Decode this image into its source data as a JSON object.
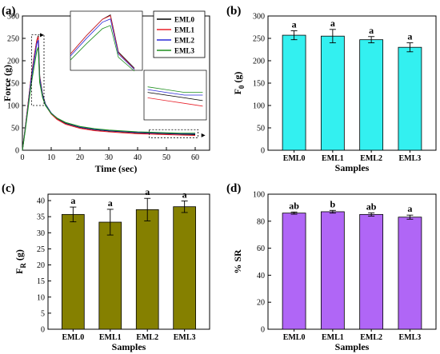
{
  "chart_data": [
    {
      "id": "a",
      "type": "line",
      "panel_label": "(a)",
      "xlabel": "Time (sec)",
      "ylabel": "Force (g)",
      "xlim": [
        0,
        65
      ],
      "ylim": [
        0,
        300
      ],
      "xticks": [
        0,
        10,
        20,
        30,
        40,
        50,
        60
      ],
      "yticks": [
        0,
        50,
        100,
        150,
        200,
        250,
        300
      ],
      "series": [
        {
          "name": "EML0",
          "color": "#000000",
          "x": [
            0,
            1,
            2,
            3,
            4,
            5,
            5.5,
            6,
            7,
            8,
            10,
            12,
            15,
            20,
            25,
            30,
            35,
            40,
            45,
            50,
            55,
            60
          ],
          "y": [
            0,
            50,
            105,
            160,
            205,
            245,
            256,
            165,
            125,
            103,
            83,
            71,
            60,
            51,
            46,
            43,
            41,
            39,
            38,
            37,
            36,
            35
          ]
        },
        {
          "name": "EML1",
          "color": "#e8202a",
          "x": [
            0,
            1,
            2,
            3,
            4,
            5,
            5.5,
            6,
            7,
            8,
            10,
            12,
            15,
            20,
            25,
            30,
            35,
            40,
            45,
            50,
            55,
            60
          ],
          "y": [
            0,
            50,
            105,
            160,
            205,
            245,
            254,
            163,
            123,
            101,
            81,
            69,
            58,
            49,
            44,
            41,
            39,
            37,
            36,
            35,
            34,
            33
          ]
        },
        {
          "name": "EML2",
          "color": "#2a2ad8",
          "x": [
            0,
            1,
            2,
            3,
            4,
            5,
            5.5,
            6,
            7,
            8,
            10,
            12,
            15,
            20,
            25,
            30,
            35,
            40,
            45,
            50,
            55,
            60
          ],
          "y": [
            0,
            48,
            100,
            155,
            198,
            238,
            246,
            160,
            122,
            102,
            83,
            72,
            61,
            52,
            47,
            44,
            42,
            40,
            39,
            38,
            37,
            37
          ]
        },
        {
          "name": "EML3",
          "color": "#1f8f1f",
          "x": [
            0,
            1,
            2,
            3,
            4,
            5,
            5.5,
            6,
            7,
            8,
            10,
            12,
            15,
            20,
            25,
            30,
            35,
            40,
            45,
            50,
            55,
            60
          ],
          "y": [
            0,
            45,
            95,
            145,
            185,
            222,
            230,
            152,
            118,
            100,
            82,
            72,
            62,
            53,
            48,
            45,
            43,
            41,
            40,
            39,
            38,
            38
          ]
        }
      ]
    },
    {
      "id": "b",
      "type": "bar",
      "panel_label": "(b)",
      "xlabel": "Samples",
      "ylabel": "F0 (g)",
      "ylabel_main": "F",
      "ylabel_sub": "0",
      "ylabel_unit": " (g)",
      "categories": [
        "EML0",
        "EML1",
        "EML2",
        "EML3"
      ],
      "values": [
        257,
        255,
        247,
        230
      ],
      "errors": [
        10,
        15,
        7,
        10
      ],
      "letters": [
        "a",
        "a",
        "a",
        "a"
      ],
      "ylim": [
        0,
        300
      ],
      "yticks": [
        0,
        50,
        100,
        150,
        200,
        250,
        300
      ],
      "bar_color": "#33f0f0"
    },
    {
      "id": "c",
      "type": "bar",
      "panel_label": "(c)",
      "xlabel": "Samples",
      "ylabel": "FR (g)",
      "ylabel_main": "F",
      "ylabel_sub": "R",
      "ylabel_unit": " (g)",
      "categories": [
        "EML0",
        "EML1",
        "EML2",
        "EML3"
      ],
      "values": [
        35.7,
        33.3,
        37.2,
        38.1
      ],
      "errors": [
        2.3,
        4.0,
        3.5,
        1.8
      ],
      "letters": [
        "a",
        "a",
        "a",
        "a"
      ],
      "ylim": [
        0,
        42
      ],
      "yticks": [
        0,
        5,
        10,
        15,
        20,
        25,
        30,
        35,
        40
      ],
      "bar_color": "#858000"
    },
    {
      "id": "d",
      "type": "bar",
      "panel_label": "(d)",
      "xlabel": "Samples",
      "ylabel": "% SR",
      "categories": [
        "EML0",
        "EML1",
        "EML2",
        "EML3"
      ],
      "values": [
        86,
        87,
        85,
        83
      ],
      "errors": [
        0.8,
        1.0,
        1.2,
        1.5
      ],
      "letters": [
        "ab",
        "b",
        "ab",
        "a"
      ],
      "ylim": [
        0,
        100
      ],
      "yticks": [
        0,
        20,
        40,
        60,
        80,
        100
      ],
      "bar_color": "#b066f6"
    }
  ]
}
